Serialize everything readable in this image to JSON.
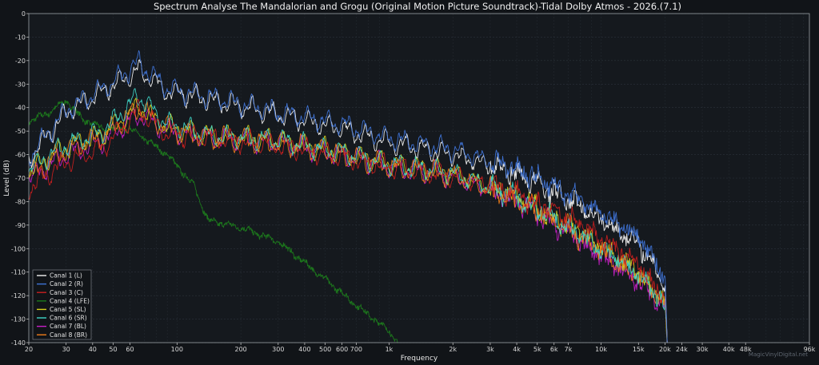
{
  "chart_data": {
    "type": "line",
    "title": "Spectrum Analyse The Mandalorian and Grogu (Original Motion Picture Soundtrack)-Tidal Dolby Atmos - 2026.(7.1)",
    "xlabel": "Frequency",
    "ylabel": "Level (dB)",
    "xscale": "log",
    "xlim": [
      20,
      96000
    ],
    "ylim": [
      -140,
      0
    ],
    "grid": true,
    "legend_position": "bottom-left",
    "x_ticks": [
      {
        "value": 20,
        "label": "20"
      },
      {
        "value": 30,
        "label": "30"
      },
      {
        "value": 40,
        "label": "40"
      },
      {
        "value": 50,
        "label": "50"
      },
      {
        "value": 60,
        "label": "60"
      },
      {
        "value": 100,
        "label": "100"
      },
      {
        "value": 200,
        "label": "200"
      },
      {
        "value": 300,
        "label": "300"
      },
      {
        "value": 400,
        "label": "400"
      },
      {
        "value": 500,
        "label": "500"
      },
      {
        "value": 600,
        "label": "600"
      },
      {
        "value": 700,
        "label": "700"
      },
      {
        "value": 1000,
        "label": "1k"
      },
      {
        "value": 2000,
        "label": "2k"
      },
      {
        "value": 3000,
        "label": "3k"
      },
      {
        "value": 4000,
        "label": "4k"
      },
      {
        "value": 5000,
        "label": "5k"
      },
      {
        "value": 6000,
        "label": "6k"
      },
      {
        "value": 7000,
        "label": "7k"
      },
      {
        "value": 10000,
        "label": "10k"
      },
      {
        "value": 15000,
        "label": "15k"
      },
      {
        "value": 20000,
        "label": "20k"
      },
      {
        "value": 24000,
        "label": "24k"
      },
      {
        "value": 30000,
        "label": "30k"
      },
      {
        "value": 40000,
        "label": "40k"
      },
      {
        "value": 48000,
        "label": "48k"
      },
      {
        "value": 96000,
        "label": "96k"
      }
    ],
    "y_ticks": [
      0,
      -10,
      -20,
      -30,
      -40,
      -50,
      -60,
      -70,
      -80,
      -90,
      -100,
      -110,
      -120,
      -130,
      -140
    ],
    "series": [
      {
        "name": "Canal 1 (L)",
        "color": "#f2f2f2",
        "x": [
          20,
          30,
          45,
          66,
          90,
          150,
          300,
          600,
          1000,
          2000,
          4000,
          8000,
          15000,
          20000,
          20500
        ],
        "y": [
          -62,
          -42,
          -33,
          -24,
          -33,
          -37,
          -43,
          -49,
          -55,
          -60,
          -68,
          -82,
          -98,
          -115,
          -140
        ]
      },
      {
        "name": "Canal 2 (R)",
        "color": "#3f74d8",
        "x": [
          20,
          30,
          45,
          66,
          90,
          150,
          300,
          600,
          1000,
          2000,
          4000,
          8000,
          15000,
          20000,
          20500
        ],
        "y": [
          -61,
          -41,
          -32,
          -21,
          -32,
          -36,
          -42,
          -47,
          -53,
          -58,
          -66,
          -79,
          -95,
          -112,
          -140
        ]
      },
      {
        "name": "Canal 3 (C)",
        "color": "#c91f1f",
        "x": [
          20,
          30,
          45,
          66,
          90,
          150,
          300,
          600,
          1000,
          2000,
          4000,
          8000,
          15000,
          20000,
          20500
        ],
        "y": [
          -74,
          -63,
          -57,
          -41,
          -51,
          -53,
          -56,
          -61,
          -65,
          -69,
          -77,
          -90,
          -107,
          -122,
          -140
        ]
      },
      {
        "name": "Canal 4 (LFE)",
        "color": "#1c7a1c",
        "x": [
          20,
          25,
          30,
          36,
          45,
          60,
          90,
          120,
          140,
          200,
          300,
          500,
          700,
          1000,
          1100
        ],
        "y": [
          -46,
          -42,
          -37,
          -45,
          -49,
          -49,
          -60,
          -73,
          -88,
          -91,
          -97,
          -113,
          -124,
          -135,
          -140
        ]
      },
      {
        "name": "Canal 5 (SL)",
        "color": "#d7d21c",
        "x": [
          20,
          30,
          45,
          66,
          90,
          150,
          300,
          600,
          1000,
          2000,
          4000,
          8000,
          15000,
          20000,
          20500
        ],
        "y": [
          -67,
          -57,
          -51,
          -40,
          -48,
          -52,
          -54,
          -59,
          -64,
          -68,
          -78,
          -93,
          -110,
          -123,
          -140
        ]
      },
      {
        "name": "Canal 6 (SR)",
        "color": "#3fd6c8",
        "x": [
          20,
          30,
          45,
          66,
          90,
          150,
          300,
          600,
          1000,
          2000,
          4000,
          8000,
          15000,
          20000,
          20500
        ],
        "y": [
          -66,
          -56,
          -50,
          -35,
          -47,
          -52,
          -54,
          -59,
          -64,
          -68,
          -78,
          -94,
          -111,
          -124,
          -140
        ]
      },
      {
        "name": "Canal 7 (BL)",
        "color": "#c81fc8",
        "x": [
          20,
          30,
          45,
          66,
          90,
          150,
          300,
          600,
          1000,
          2000,
          4000,
          8000,
          15000,
          20000,
          20500
        ],
        "y": [
          -70,
          -60,
          -54,
          -43,
          -50,
          -53,
          -55,
          -60,
          -65,
          -69,
          -80,
          -97,
          -114,
          -125,
          -140
        ]
      },
      {
        "name": "Canal 8 (BR)",
        "color": "#f07c1a",
        "x": [
          20,
          30,
          45,
          66,
          90,
          150,
          300,
          600,
          1000,
          2000,
          4000,
          8000,
          15000,
          20000,
          20500
        ],
        "y": [
          -69,
          -58,
          -52,
          -40,
          -49,
          -53,
          -55,
          -60,
          -65,
          -69,
          -79,
          -95,
          -112,
          -124,
          -140
        ]
      }
    ]
  },
  "watermark": "MagicVinylDigital.net"
}
